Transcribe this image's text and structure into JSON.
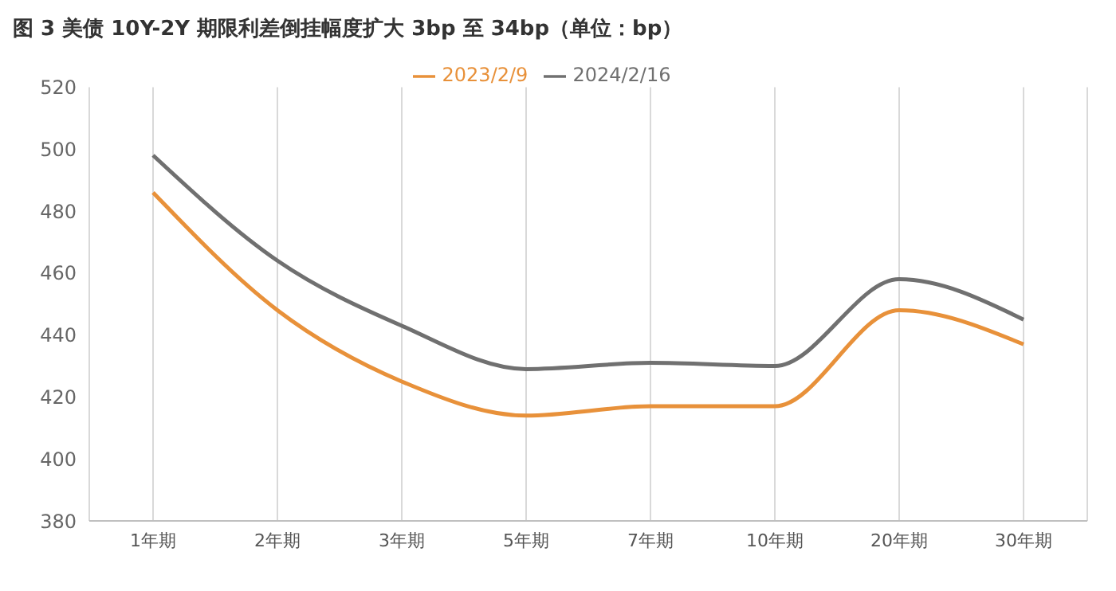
{
  "chart_data": {
    "type": "line",
    "title": "图 3   美债 10Y-2Y 期限利差倒挂幅度扩大 3bp 至 34bp（单位：bp）",
    "categories": [
      "1年期",
      "2年期",
      "3年期",
      "5年期",
      "7年期",
      "10年期",
      "20年期",
      "30年期"
    ],
    "series": [
      {
        "name": "2023/2/9",
        "color": "#e8913a",
        "values": [
          486,
          448,
          425,
          414,
          417,
          417,
          448,
          437
        ]
      },
      {
        "name": "2024/2/16",
        "color": "#707070",
        "values": [
          498,
          464,
          443,
          429,
          431,
          430,
          458,
          445
        ]
      }
    ],
    "ylim": [
      380,
      520
    ],
    "yticks": [
      380,
      400,
      420,
      440,
      460,
      480,
      500,
      520
    ],
    "grid": "x",
    "legend": "top",
    "marker": "none",
    "line_style": "solid"
  }
}
